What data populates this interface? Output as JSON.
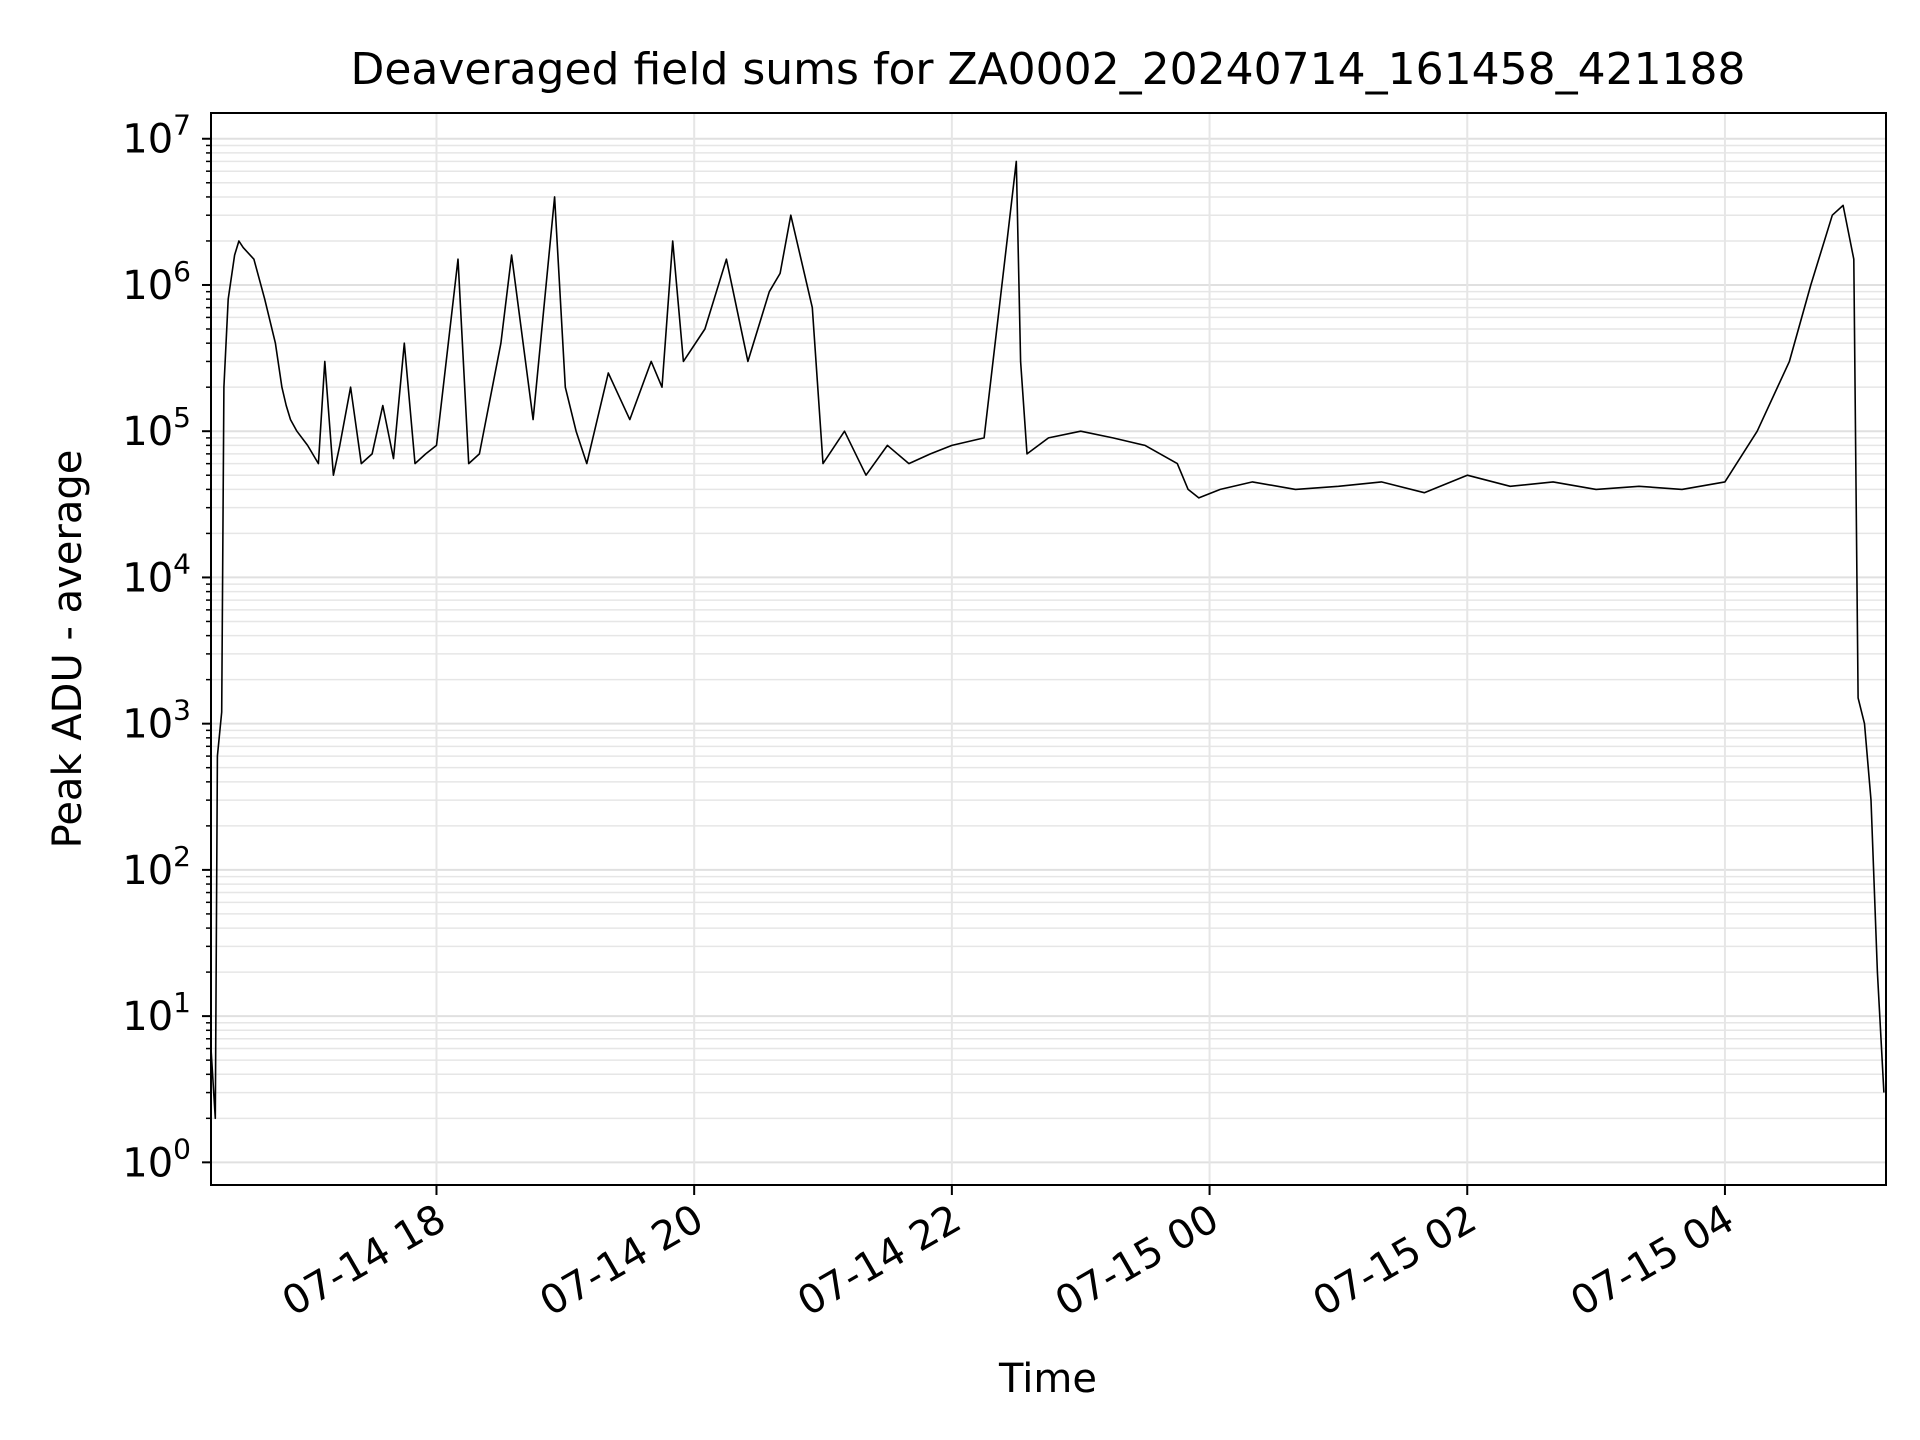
{
  "chart_data": {
    "type": "line",
    "title": "Deaveraged field sums for ZA0002_20240714_161458_421188",
    "xlabel": "Time",
    "ylabel": "Peak ADU - average",
    "yscale": "log",
    "ylim": [
      0.7,
      15000000
    ],
    "xlim": [
      "2024-07-14 16:15",
      "2024-07-15 05:15"
    ],
    "x_ticks": [
      {
        "t": "2024-07-14 18:00",
        "label": "07-14 18"
      },
      {
        "t": "2024-07-14 20:00",
        "label": "07-14 20"
      },
      {
        "t": "2024-07-14 22:00",
        "label": "07-14 22"
      },
      {
        "t": "2024-07-15 00:00",
        "label": "07-15 00"
      },
      {
        "t": "2024-07-15 02:00",
        "label": "07-15 02"
      },
      {
        "t": "2024-07-15 04:00",
        "label": "07-15 04"
      }
    ],
    "y_ticks": [
      {
        "value": 1,
        "base": "10",
        "exp": "0"
      },
      {
        "value": 10,
        "base": "10",
        "exp": "1"
      },
      {
        "value": 100,
        "base": "10",
        "exp": "2"
      },
      {
        "value": 1000,
        "base": "10",
        "exp": "3"
      },
      {
        "value": 10000,
        "base": "10",
        "exp": "4"
      },
      {
        "value": 100000,
        "base": "10",
        "exp": "5"
      },
      {
        "value": 1000000,
        "base": "10",
        "exp": "6"
      },
      {
        "value": 10000000,
        "base": "10",
        "exp": "7"
      }
    ],
    "grid": true,
    "line_color": "#000000",
    "series": [
      {
        "x": [
          "2024-07-14 16:15",
          "2024-07-14 16:17",
          "2024-07-14 16:18",
          "2024-07-14 16:20",
          "2024-07-14 16:21",
          "2024-07-14 16:23",
          "2024-07-14 16:26",
          "2024-07-14 16:28",
          "2024-07-14 16:30",
          "2024-07-14 16:35",
          "2024-07-14 16:40",
          "2024-07-14 16:45",
          "2024-07-14 16:48",
          "2024-07-14 16:50",
          "2024-07-14 16:52",
          "2024-07-14 16:55",
          "2024-07-14 17:00",
          "2024-07-14 17:05",
          "2024-07-14 17:08",
          "2024-07-14 17:12",
          "2024-07-14 17:15",
          "2024-07-14 17:20",
          "2024-07-14 17:25",
          "2024-07-14 17:30",
          "2024-07-14 17:35",
          "2024-07-14 17:40",
          "2024-07-14 17:45",
          "2024-07-14 17:50",
          "2024-07-14 17:55",
          "2024-07-14 18:00",
          "2024-07-14 18:10",
          "2024-07-14 18:15",
          "2024-07-14 18:20",
          "2024-07-14 18:30",
          "2024-07-14 18:35",
          "2024-07-14 18:45",
          "2024-07-14 18:55",
          "2024-07-14 19:00",
          "2024-07-14 19:05",
          "2024-07-14 19:10",
          "2024-07-14 19:20",
          "2024-07-14 19:30",
          "2024-07-14 19:40",
          "2024-07-14 19:45",
          "2024-07-14 19:50",
          "2024-07-14 19:55",
          "2024-07-14 20:05",
          "2024-07-14 20:15",
          "2024-07-14 20:25",
          "2024-07-14 20:35",
          "2024-07-14 20:40",
          "2024-07-14 20:45",
          "2024-07-14 20:55",
          "2024-07-14 21:00",
          "2024-07-14 21:10",
          "2024-07-14 21:20",
          "2024-07-14 21:30",
          "2024-07-14 21:40",
          "2024-07-14 21:50",
          "2024-07-14 22:00",
          "2024-07-14 22:15",
          "2024-07-14 22:30",
          "2024-07-14 22:32",
          "2024-07-14 22:35",
          "2024-07-14 22:45",
          "2024-07-14 23:00",
          "2024-07-14 23:15",
          "2024-07-14 23:30",
          "2024-07-14 23:45",
          "2024-07-14 23:50",
          "2024-07-14 23:55",
          "2024-07-15 00:05",
          "2024-07-15 00:20",
          "2024-07-15 00:40",
          "2024-07-15 01:00",
          "2024-07-15 01:20",
          "2024-07-15 01:40",
          "2024-07-15 02:00",
          "2024-07-15 02:20",
          "2024-07-15 02:40",
          "2024-07-15 03:00",
          "2024-07-15 03:20",
          "2024-07-15 03:40",
          "2024-07-15 04:00",
          "2024-07-15 04:15",
          "2024-07-15 04:30",
          "2024-07-15 04:40",
          "2024-07-15 04:50",
          "2024-07-15 04:55",
          "2024-07-15 05:00",
          "2024-07-15 05:02",
          "2024-07-15 05:05",
          "2024-07-15 05:08",
          "2024-07-15 05:11",
          "2024-07-15 05:14"
        ],
        "y": [
          6,
          2,
          600,
          1200,
          200000,
          800000,
          1600000,
          2000000,
          1800000,
          1500000,
          800000,
          400000,
          200000,
          150000,
          120000,
          100000,
          80000,
          60000,
          300000,
          50000,
          80000,
          200000,
          60000,
          70000,
          150000,
          65000,
          400000,
          60000,
          70000,
          80000,
          1500000,
          60000,
          70000,
          400000,
          1600000,
          120000,
          4000000,
          200000,
          100000,
          60000,
          250000,
          120000,
          300000,
          200000,
          2000000,
          300000,
          500000,
          1500000,
          300000,
          900000,
          1200000,
          3000000,
          700000,
          60000,
          100000,
          50000,
          80000,
          60000,
          70000,
          80000,
          90000,
          7000000,
          300000,
          70000,
          90000,
          100000,
          90000,
          80000,
          60000,
          40000,
          35000,
          40000,
          45000,
          40000,
          42000,
          45000,
          38000,
          50000,
          42000,
          45000,
          40000,
          42000,
          40000,
          45000,
          100000,
          300000,
          1000000,
          3000000,
          3500000,
          1500000,
          1500,
          1000,
          300,
          20,
          3
        ]
      }
    ]
  }
}
